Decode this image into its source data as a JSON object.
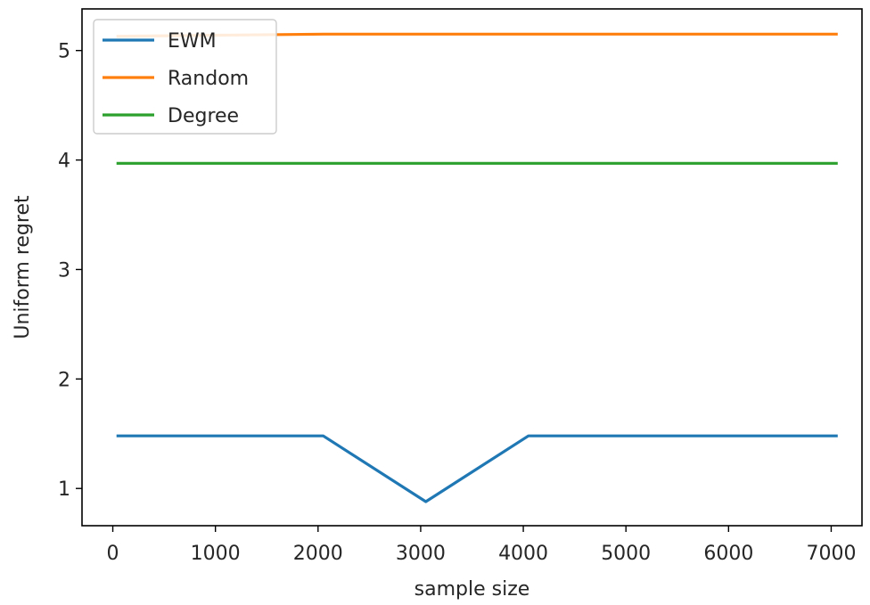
{
  "chart_data": {
    "type": "line",
    "xlabel": "sample size",
    "ylabel": "Uniform regret",
    "xlim": [
      -300,
      7300
    ],
    "ylim": [
      0.66,
      5.38
    ],
    "xticks": [
      0,
      1000,
      2000,
      3000,
      4000,
      5000,
      6000,
      7000
    ],
    "yticks": [
      1,
      2,
      3,
      4,
      5
    ],
    "grid": false,
    "legend_position": "top-left",
    "x": [
      50,
      1050,
      2050,
      3050,
      4050,
      5050,
      6050,
      7050
    ],
    "series": [
      {
        "name": "EWM",
        "color": "#1f77b4",
        "values": [
          1.48,
          1.48,
          1.48,
          0.88,
          1.48,
          1.48,
          1.48,
          1.48
        ]
      },
      {
        "name": "Random",
        "color": "#ff7f0e",
        "values": [
          5.13,
          5.14,
          5.15,
          5.15,
          5.15,
          5.15,
          5.15,
          5.15
        ]
      },
      {
        "name": "Degree",
        "color": "#2ca02c",
        "values": [
          3.97,
          3.97,
          3.97,
          3.97,
          3.97,
          3.97,
          3.97,
          3.97
        ]
      }
    ]
  }
}
